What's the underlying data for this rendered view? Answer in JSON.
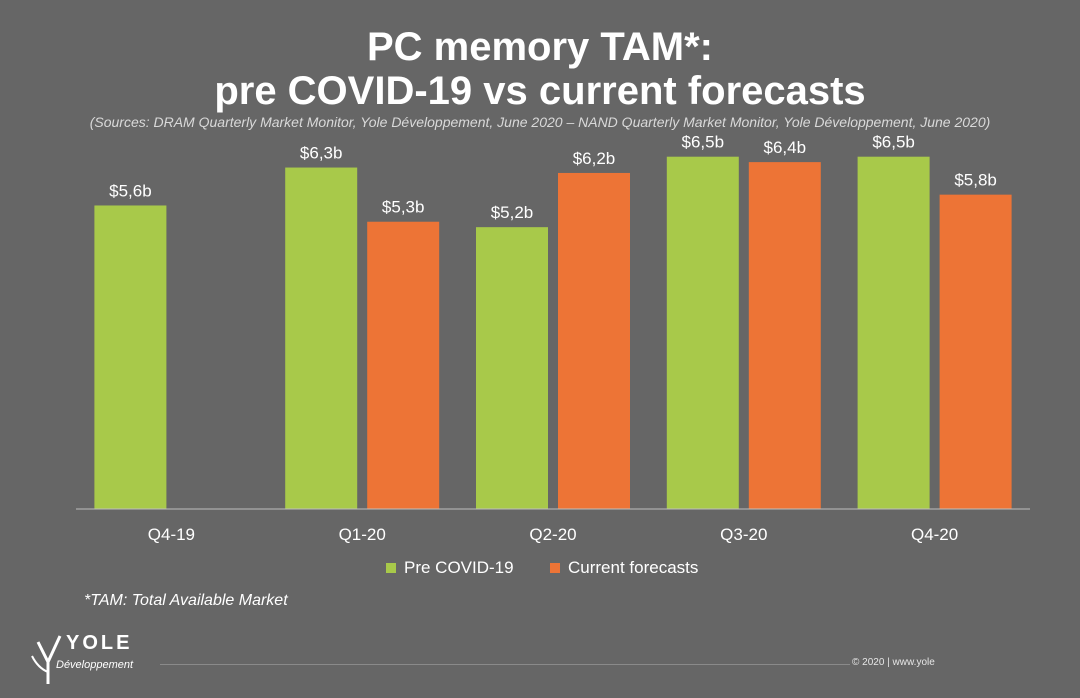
{
  "header": {
    "title_line1": "PC memory TAM*:",
    "title_line2": "pre COVID-19 vs current forecasts",
    "subtitle": "(Sources: DRAM Quarterly Market Monitor, Yole Développement, June 2020 – NAND Quarterly Market Monitor, Yole Développement, June 2020)"
  },
  "colors": {
    "pre_covid": "#a8c94a",
    "current": "#ed7436",
    "background": "#666666",
    "axis": "#bfbfbf"
  },
  "chart_data": {
    "type": "bar",
    "categories": [
      "Q4-19",
      "Q1-20",
      "Q2-20",
      "Q3-20",
      "Q4-20"
    ],
    "series": [
      {
        "name": "Pre COVID-19",
        "values": [
          5.6,
          6.3,
          5.2,
          6.5,
          6.5
        ],
        "labels": [
          "$5,6b",
          "$6,3b",
          "$5,2b",
          "$6,5b",
          "$6,5b"
        ]
      },
      {
        "name": "Current forecasts",
        "values": [
          null,
          5.3,
          6.2,
          6.4,
          5.8
        ],
        "labels": [
          "",
          "$5,3b",
          "$6,2b",
          "$6,4b",
          "$5,8b"
        ]
      }
    ],
    "ylim": [
      0,
      8
    ],
    "grid": false,
    "legend": "bottom",
    "title": "PC memory TAM*: pre COVID-19 vs current forecasts",
    "xlabel": "",
    "ylabel": ""
  },
  "footnote": "*TAM: Total Available Market",
  "logo": {
    "main": "YOLE",
    "sub": "Développement"
  },
  "footer": {
    "copyright": "© 2020 | www.yole"
  }
}
